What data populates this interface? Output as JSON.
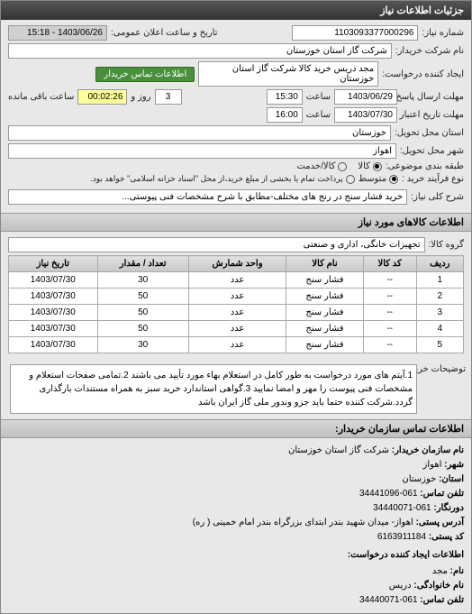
{
  "header": {
    "title": "جزئیات اطلاعات نیاز"
  },
  "info": {
    "req_number_label": "شماره نیاز:",
    "req_number": "1103093377000296",
    "announce_label": "تاریخ و ساعت اعلان عمومی:",
    "announce_value": "1403/06/26 - 15:18",
    "buyer_label": "نام شرکت خریدار:",
    "buyer_value": "شرکت گاز استان خوزستان",
    "requester_label": "ایجاد کننده درخواست:",
    "requester_value": "مجد دریس خرید کالا شرکت گاز استان خوزستان",
    "contact_btn": "اطلاعات تماس خریدار",
    "deadline_label": "مهلت ارسال پاسخ: تا تاریخ:",
    "deadline_date": "1403/06/29",
    "time_label": "ساعت",
    "deadline_time": "15:30",
    "and_label": "و",
    "days_label": "روز و",
    "days_value": "3",
    "remaining_label": "ساعت باقی مانده",
    "remaining_time": "00:02:26",
    "validity_label": "مهلت تاریخ اعتبار پاسخ: تا تاریخ:",
    "validity_date": "1403/07/30",
    "validity_time": "16:00",
    "province_label": "استان محل تحویل:",
    "province_value": "خوزستان",
    "city_label": "شهر محل تحویل:",
    "city_value": "اهواز",
    "category_label": "طبقه بندی موضوعی:",
    "cat_goods": "کالا",
    "cat_service": "کالا/خدمت",
    "process_label": "نوع فرآیند خرید :",
    "proc_medium": "متوسط",
    "proc_note": "پرداخت تمام یا بخشی از مبلغ خرید،از محل \"اسناد خزانه اسلامی\" خواهد بود."
  },
  "need": {
    "title_label": "شرح کلی نیاز:",
    "title_value": "خرید فشار سنج در رنج های مختلف-مطابق با شرح مشخصات فنی پیوستی...",
    "section_title": "اطلاعات کالاهای مورد نیاز",
    "group_label": "گروه کالا:",
    "group_value": "تجهیزات خانگی، اداری و صنعتی"
  },
  "table": {
    "headers": [
      "ردیف",
      "کد کالا",
      "نام کالا",
      "واحد شمارش",
      "تعداد / مقدار",
      "تاریخ نیاز"
    ],
    "rows": [
      [
        "1",
        "--",
        "فشار سنج",
        "عدد",
        "30",
        "1403/07/30"
      ],
      [
        "2",
        "--",
        "فشار سنج",
        "عدد",
        "50",
        "1403/07/30"
      ],
      [
        "3",
        "--",
        "فشار سنج",
        "عدد",
        "50",
        "1403/07/30"
      ],
      [
        "4",
        "--",
        "فشار سنج",
        "عدد",
        "50",
        "1403/07/30"
      ],
      [
        "5",
        "--",
        "فشار سنج",
        "عدد",
        "30",
        "1403/07/30"
      ]
    ]
  },
  "description": {
    "label": "توضیحات خریدار:",
    "text": "1.آیتم های مورد درخواست به طور کامل در استعلام بهاء مورد تأیید می باشند 2.تمامی صفحات استعلام و مشخصات فنی پیوست را مهر و امضا نمایید 3.گواهی استاندارد خرید سبز به همراه مستندات بارگذاری گردد.شرکت کننده حتما باید جزو وندور ملی گاز ایران باشد"
  },
  "contact": {
    "section_title": "اطلاعات تماس سازمان خریدار:",
    "org_label": "نام سازمان خریدار:",
    "org_value": "شرکت گاز استان خوزستان",
    "city_label": "شهر:",
    "city_value": "اهواز",
    "province_label": "استان:",
    "province_value": "خوزستان",
    "phone_label": "تلفن تماس:",
    "phone_value": "061-34441096",
    "fax_label": "دورنگار:",
    "fax_value": "061-34440071",
    "address_label": "آدرس پستی:",
    "address_value": "اهواز- میدان شهید بندر ابتدای بزرگراه بندر امام خمینی ( ره)",
    "postal_label": "کد پستی:",
    "postal_value": "6163911184",
    "creator_section": "اطلاعات ایجاد کننده درخواست:",
    "creator_name_label": "نام:",
    "creator_name_value": "مجد",
    "creator_family_label": "نام خانوادگی:",
    "creator_family_value": "دریس",
    "creator_phone_label": "تلفن تماس:",
    "creator_phone_value": "061-34440071"
  }
}
